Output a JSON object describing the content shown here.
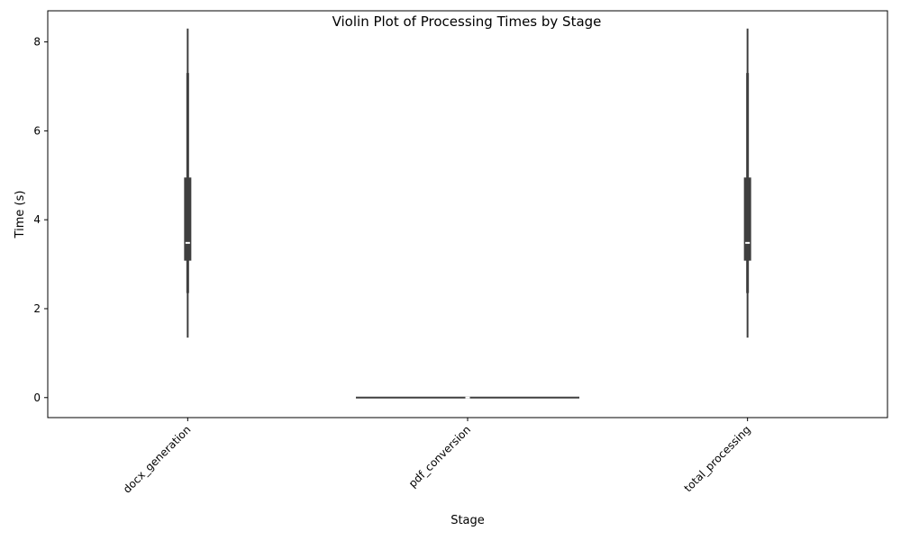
{
  "chart_data": {
    "type": "violin",
    "title": "Violin Plot of Processing Times by Stage",
    "xlabel": "Stage",
    "ylabel": "Time (s)",
    "ylim": [
      -0.45,
      8.7
    ],
    "yticks": [
      0,
      2,
      4,
      6,
      8
    ],
    "grid": false,
    "categories": [
      "docx_generation",
      "pdf_conversion",
      "total_processing"
    ],
    "violins": [
      {
        "category": "docx_generation",
        "min": 1.35,
        "q1": 3.08,
        "median": 3.48,
        "q3": 4.95,
        "max": 8.3,
        "whisker_low": 2.35,
        "whisker_high": 7.3
      },
      {
        "category": "pdf_conversion",
        "min": 0.0,
        "q1": 0.0,
        "median": 0.0,
        "q3": 0.0,
        "max": 0.0,
        "whisker_low": 0.0,
        "whisker_high": 0.0
      },
      {
        "category": "total_processing",
        "min": 1.35,
        "q1": 3.08,
        "median": 3.48,
        "q3": 4.95,
        "max": 8.3,
        "whisker_low": 2.35,
        "whisker_high": 7.3
      }
    ],
    "colors": {
      "body": "#3f3f3f",
      "median": "#ffffff",
      "axes": "#000000"
    }
  }
}
